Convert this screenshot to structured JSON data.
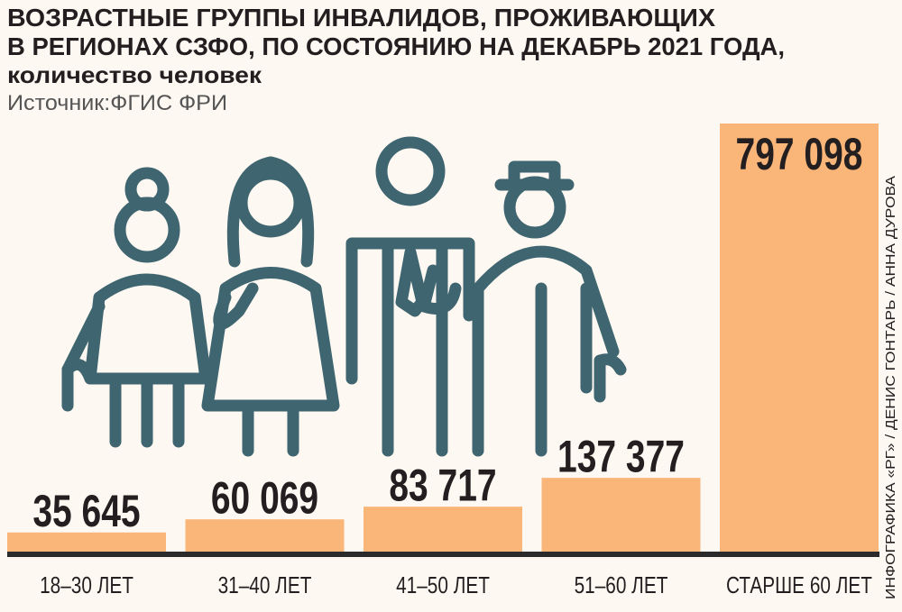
{
  "chart_data": {
    "type": "bar",
    "title": [
      "ВОЗРАСТНЫЕ ГРУППЫ ИНВАЛИДОВ, ПРОЖИВАЮЩИХ",
      "В РЕГИОНАХ СЗФО, ПО СОСТОЯНИЮ НА ДЕКАБРЬ 2021 ГОДА,"
    ],
    "subtitle": "количество человек",
    "source": "Источник:ФГИС ФРИ",
    "credit": "ИНФОГРАФИКА «РГ» / ДЕНИС ГОНТАРЬ / АННА ДУРОВА",
    "categories": [
      "18–30 ЛЕТ",
      "31–40 ЛЕТ",
      "41–50 ЛЕТ",
      "51–60 ЛЕТ",
      "СТАРШЕ 60 ЛЕТ"
    ],
    "values": [
      35645,
      60069,
      83717,
      137377,
      797098
    ],
    "value_labels": [
      "35 645",
      "60 069",
      "83 717",
      "137 377",
      "797 098"
    ],
    "color": "#fab679"
  }
}
